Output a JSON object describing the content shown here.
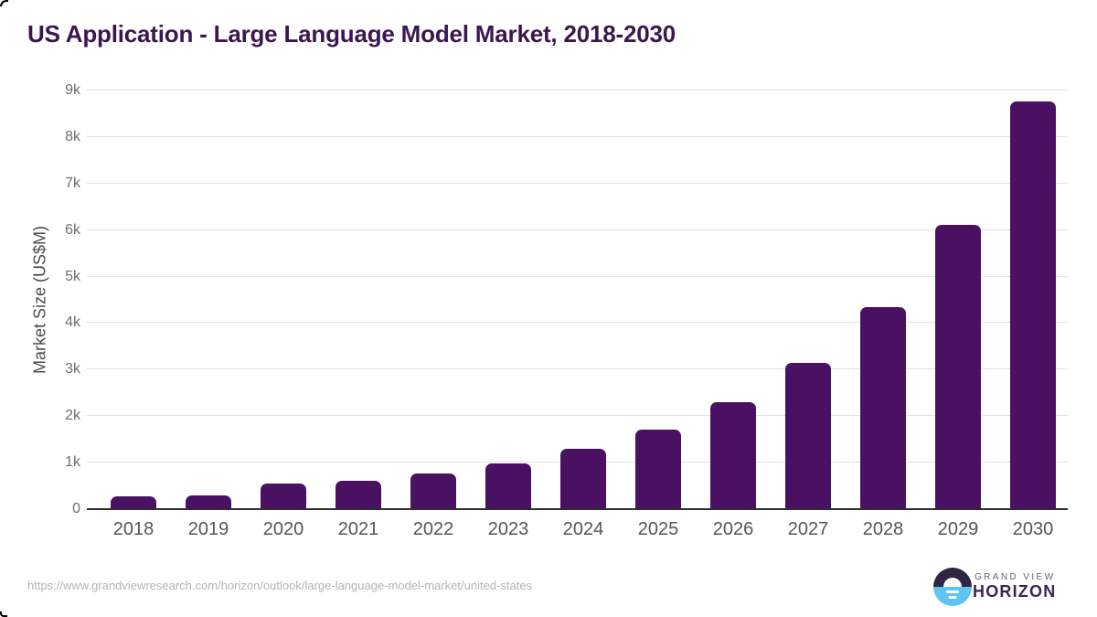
{
  "title": "US Application - Large Language Model Market, 2018-2030",
  "footer": {
    "source_url": "https://www.grandviewresearch.com/horizon/outlook/large-language-model-market/united-states",
    "logo": {
      "top": "GRAND VIEW",
      "bottom": "HORIZON"
    }
  },
  "colors": {
    "bar": "#4a1162",
    "title_text": "#3b1650",
    "y_axis_title_text": "#4b4b4b",
    "y_tick_text": "#6e6e6e",
    "x_tick_text": "#555555",
    "gridline": "#e2e2e2",
    "axis_line": "#2e2e2e",
    "url_text": "#b4b4b4",
    "logo_dark_half": "#2f2444",
    "logo_blue_half": "#5fc4f1",
    "logo_text_top": "#6d6080",
    "logo_text_bottom": "#3d2353"
  },
  "chart_data": {
    "type": "bar",
    "title": "US Application - Large Language Model Market, 2018-2030",
    "xlabel": "",
    "ylabel": "Market Size (US$M)",
    "ylim": [
      0,
      9000
    ],
    "ytick_values": [
      0,
      1000,
      2000,
      3000,
      4000,
      5000,
      6000,
      7000,
      8000,
      9000
    ],
    "ytick_labels": [
      "0",
      "1k",
      "2k",
      "3k",
      "4k",
      "5k",
      "6k",
      "7k",
      "8k",
      "9k"
    ],
    "grid": true,
    "legend": false,
    "categories": [
      "2018",
      "2019",
      "2020",
      "2021",
      "2022",
      "2023",
      "2024",
      "2025",
      "2026",
      "2027",
      "2028",
      "2029",
      "2030"
    ],
    "values": [
      280,
      300,
      560,
      600,
      770,
      980,
      1290,
      1710,
      2300,
      3140,
      4350,
      6120,
      8760
    ]
  }
}
